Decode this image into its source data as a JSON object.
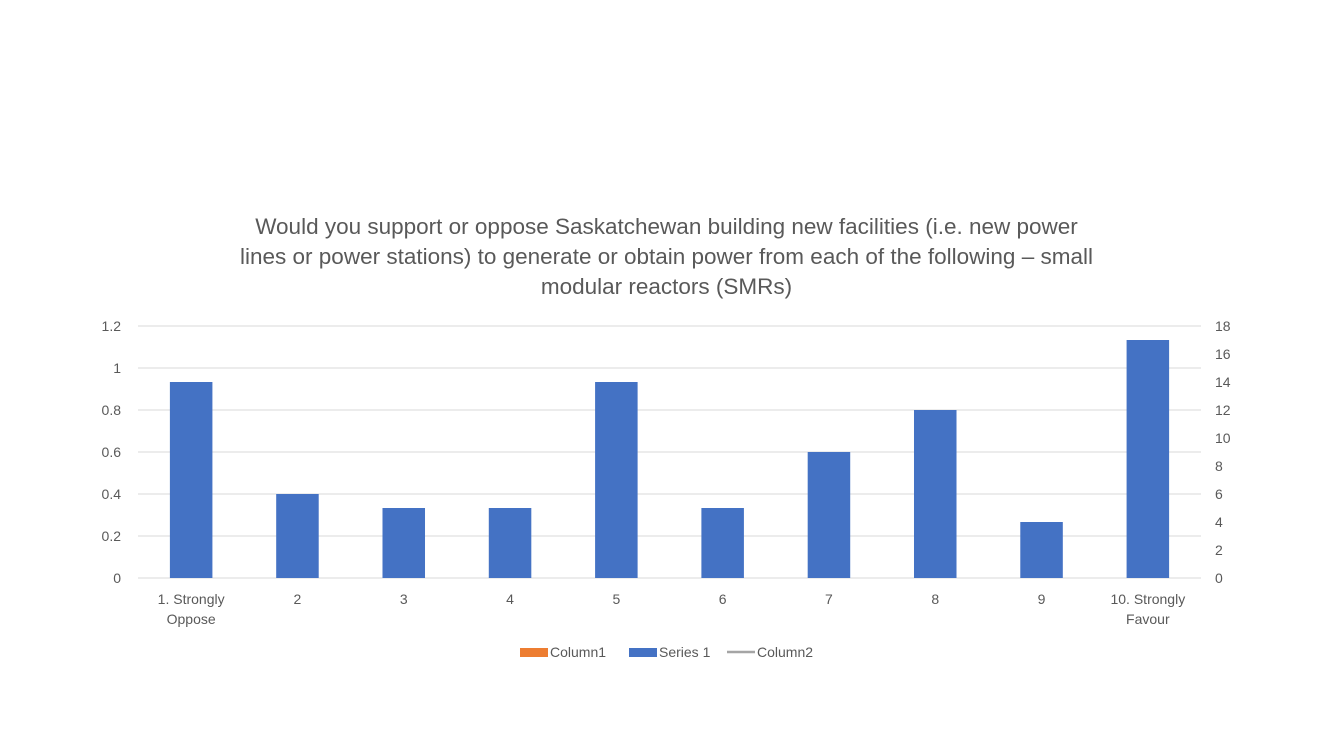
{
  "chart_data": {
    "type": "bar",
    "title": "Would you support or oppose Saskatchewan building new facilities (i.e. new power\nlines or power stations) to generate or obtain power from each of the following – small\nmodular reactors (SMRs)",
    "categories": [
      "1. Strongly\nOppose",
      "2",
      "3",
      "4",
      "5",
      "6",
      "7",
      "8",
      "9",
      "10. Strongly\nFavour"
    ],
    "series": [
      {
        "name": "Series 1",
        "axis": "secondary",
        "color": "#4472C4",
        "values": [
          14,
          6,
          5,
          5,
          14,
          5,
          9,
          12,
          4,
          17
        ]
      }
    ],
    "y_primary": {
      "ylim": [
        0,
        1.2
      ],
      "ticks": [
        "0",
        "0.2",
        "0.4",
        "0.6",
        "0.8",
        "1",
        "1.2"
      ]
    },
    "y_secondary": {
      "ylim": [
        0,
        18
      ],
      "ticks": [
        "0",
        "2",
        "4",
        "6",
        "8",
        "10",
        "12",
        "14",
        "16",
        "18"
      ]
    },
    "grid": true,
    "legend": {
      "position": "bottom",
      "entries": [
        {
          "label": "Column1",
          "color": "#ED7D31",
          "shape": "rect"
        },
        {
          "label": "Series 1",
          "color": "#4472C4",
          "shape": "rect"
        },
        {
          "label": "Column2",
          "color": "#A5A5A5",
          "shape": "line"
        }
      ]
    }
  }
}
